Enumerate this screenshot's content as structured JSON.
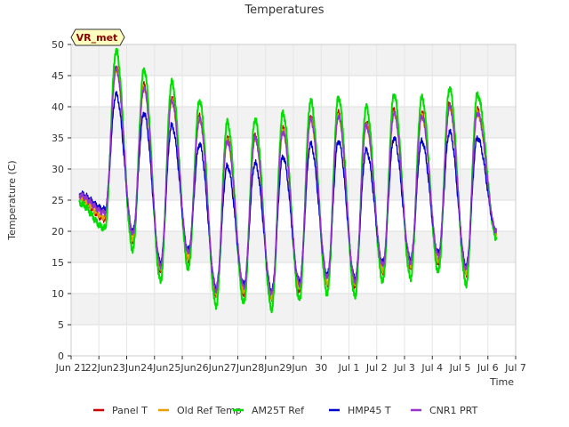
{
  "chart_data": {
    "type": "line",
    "title": "Temperatures",
    "xlabel": "Time",
    "ylabel": "Temperature (C)",
    "ylim": [
      0,
      50
    ],
    "yticks": [
      0,
      5,
      10,
      15,
      20,
      25,
      30,
      35,
      40,
      45,
      50
    ],
    "xlim": [
      21.0,
      37.0
    ],
    "xticks": [
      {
        "x": 21,
        "label": "Jun 21"
      },
      {
        "x": 22,
        "label": "22Jun"
      },
      {
        "x": 23,
        "label": "23Jun"
      },
      {
        "x": 24,
        "label": "24Jun"
      },
      {
        "x": 25,
        "label": "25Jun"
      },
      {
        "x": 26,
        "label": "26Jun"
      },
      {
        "x": 27,
        "label": "27Jun"
      },
      {
        "x": 28,
        "label": "28Jun"
      },
      {
        "x": 29,
        "label": "29Jun"
      },
      {
        "x": 30,
        "label": "30"
      },
      {
        "x": 31,
        "label": "Jul 1"
      },
      {
        "x": 32,
        "label": "Jul 2"
      },
      {
        "x": 33,
        "label": "Jul 3"
      },
      {
        "x": 34,
        "label": "Jul 4"
      },
      {
        "x": 35,
        "label": "Jul 5"
      },
      {
        "x": 36,
        "label": "Jul 6"
      },
      {
        "x": 37,
        "label": "Jul 7"
      }
    ],
    "grid": true,
    "annotation": "VR_met",
    "legend_position": "bottom",
    "x_start": 21.3,
    "x_end": 36.3,
    "daily_extremes": {
      "peak_time_of_day": 0.62,
      "trough_time_of_day": 0.22,
      "am25t_max": [
        49,
        46,
        44,
        41,
        37.5,
        38,
        39,
        41,
        41.5,
        40,
        42,
        41.5,
        43,
        42
      ],
      "am25t_min": [
        20.5,
        17,
        12,
        14,
        8,
        8.5,
        7.5,
        9,
        10,
        9.5,
        12,
        12.5,
        13.5,
        11.5
      ]
    },
    "series": [
      {
        "name": "Panel T",
        "color": "#cc0000",
        "max_offset": -2.5,
        "min_offset": 1.5
      },
      {
        "name": "Old Ref Temp",
        "color": "#e69f00",
        "max_offset": -3.0,
        "min_offset": 1.8
      },
      {
        "name": "AM25T Ref",
        "color": "#00e000",
        "max_offset": 0.0,
        "min_offset": 0.0
      },
      {
        "name": "HMP45 T",
        "color": "#0000cc",
        "max_offset": -7.0,
        "min_offset": 3.0
      },
      {
        "name": "CNR1 PRT",
        "color": "#9933cc",
        "max_offset": -3.0,
        "min_offset": 2.5
      }
    ]
  }
}
